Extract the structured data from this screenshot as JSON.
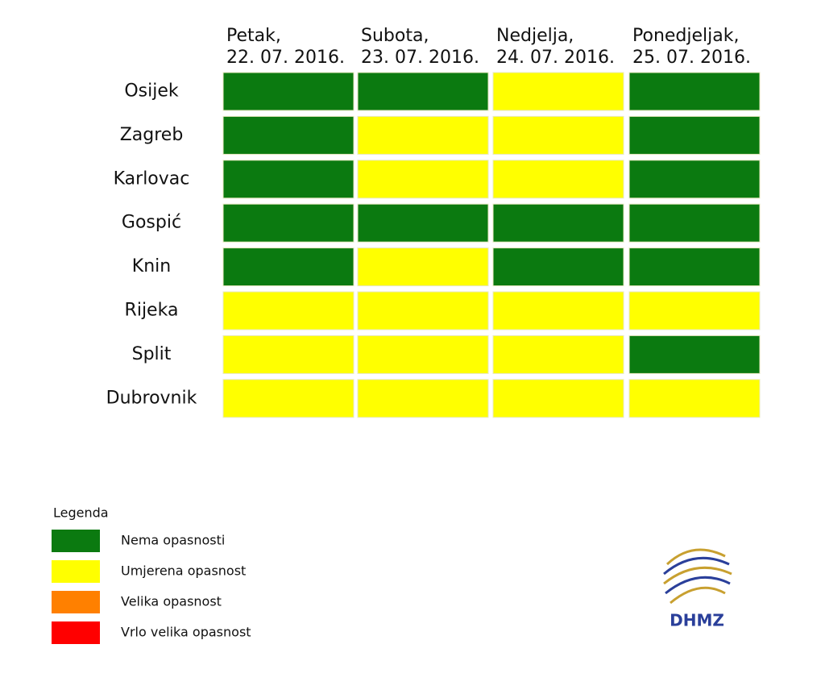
{
  "columns": [
    {
      "day": "Petak,",
      "date": "22. 07. 2016."
    },
    {
      "day": "Subota,",
      "date": "23. 07. 2016."
    },
    {
      "day": "Nedjelja,",
      "date": "24. 07. 2016."
    },
    {
      "day": "Ponedjeljak,",
      "date": "25. 07. 2016."
    }
  ],
  "rows": [
    {
      "city": "Osijek",
      "cells": [
        "#0b7a10",
        "#0b7a10",
        "#ffff00",
        "#0b7a10"
      ]
    },
    {
      "city": "Zagreb",
      "cells": [
        "#0b7a10",
        "#ffff00",
        "#ffff00",
        "#0b7a10"
      ]
    },
    {
      "city": "Karlovac",
      "cells": [
        "#0b7a10",
        "#ffff00",
        "#ffff00",
        "#0b7a10"
      ]
    },
    {
      "city": "Gospić",
      "cells": [
        "#0b7a10",
        "#0b7a10",
        "#0b7a10",
        "#0b7a10"
      ]
    },
    {
      "city": "Knin",
      "cells": [
        "#0b7a10",
        "#ffff00",
        "#0b7a10",
        "#0b7a10"
      ]
    },
    {
      "city": "Rijeka",
      "cells": [
        "#ffff00",
        "#ffff00",
        "#ffff00",
        "#ffff00"
      ]
    },
    {
      "city": "Split",
      "cells": [
        "#ffff00",
        "#ffff00",
        "#ffff00",
        "#0b7a10"
      ]
    },
    {
      "city": "Dubrovnik",
      "cells": [
        "#ffff00",
        "#ffff00",
        "#ffff00",
        "#ffff00"
      ]
    }
  ],
  "legend": {
    "title": "Legenda",
    "items": [
      {
        "label": "Nema opasnosti",
        "color": "#0b7a10"
      },
      {
        "label": "Umjerena opasnost",
        "color": "#ffff00"
      },
      {
        "label": "Velika opasnost",
        "color": "#ff8000"
      },
      {
        "label": "Vrlo velika opasnost",
        "color": "#ff0000"
      }
    ]
  },
  "logo": "DHMZ"
}
